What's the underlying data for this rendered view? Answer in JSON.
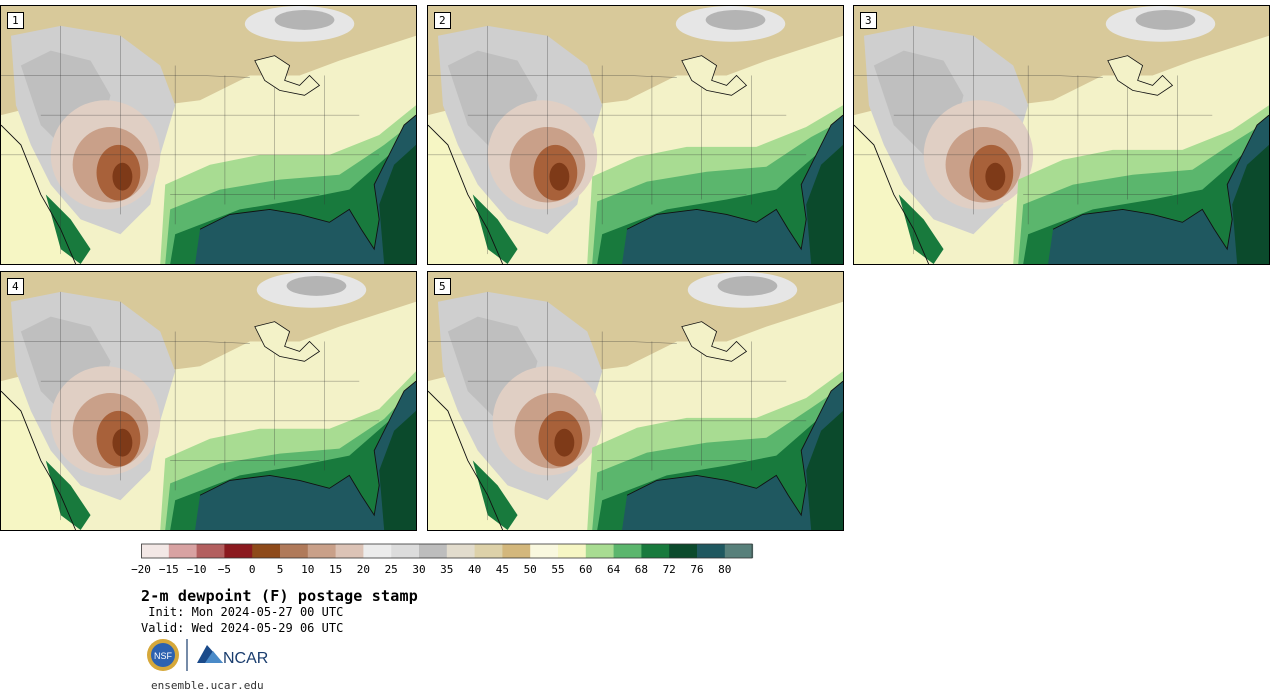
{
  "panels": [
    {
      "label": "1"
    },
    {
      "label": "2"
    },
    {
      "label": "3"
    },
    {
      "label": "4"
    },
    {
      "label": "5"
    }
  ],
  "colorbar": {
    "colors": [
      "#f3e8e6",
      "#d8a2a2",
      "#b35f5f",
      "#8b1a1f",
      "#8e4a1a",
      "#b07a5a",
      "#c9a089",
      "#dcc3b6",
      "#ececec",
      "#dcdcdc",
      "#bdbdbd",
      "#e2dccd",
      "#ddd1a9",
      "#d3b77c",
      "#f9f8df",
      "#f6f6c4",
      "#a8dc92",
      "#5bb66d",
      "#187a3d",
      "#0b4a2c",
      "#1f5860",
      "#58807b"
    ],
    "ticks": [
      "−20",
      "−15",
      "−10",
      "−5",
      "0",
      "5",
      "10",
      "15",
      "20",
      "25",
      "30",
      "35",
      "40",
      "45",
      "50",
      "55",
      "60",
      "64",
      "68",
      "72",
      "76",
      "80"
    ]
  },
  "title": "2-m dewpoint (F) postage stamp",
  "init": " Init: Mon 2024-05-27 00 UTC",
  "valid": "Valid: Wed 2024-05-29 06 UTC",
  "logos": {
    "nsf": "NSF",
    "ncar": "NCAR"
  },
  "url": "ensemble.ucar.edu"
}
